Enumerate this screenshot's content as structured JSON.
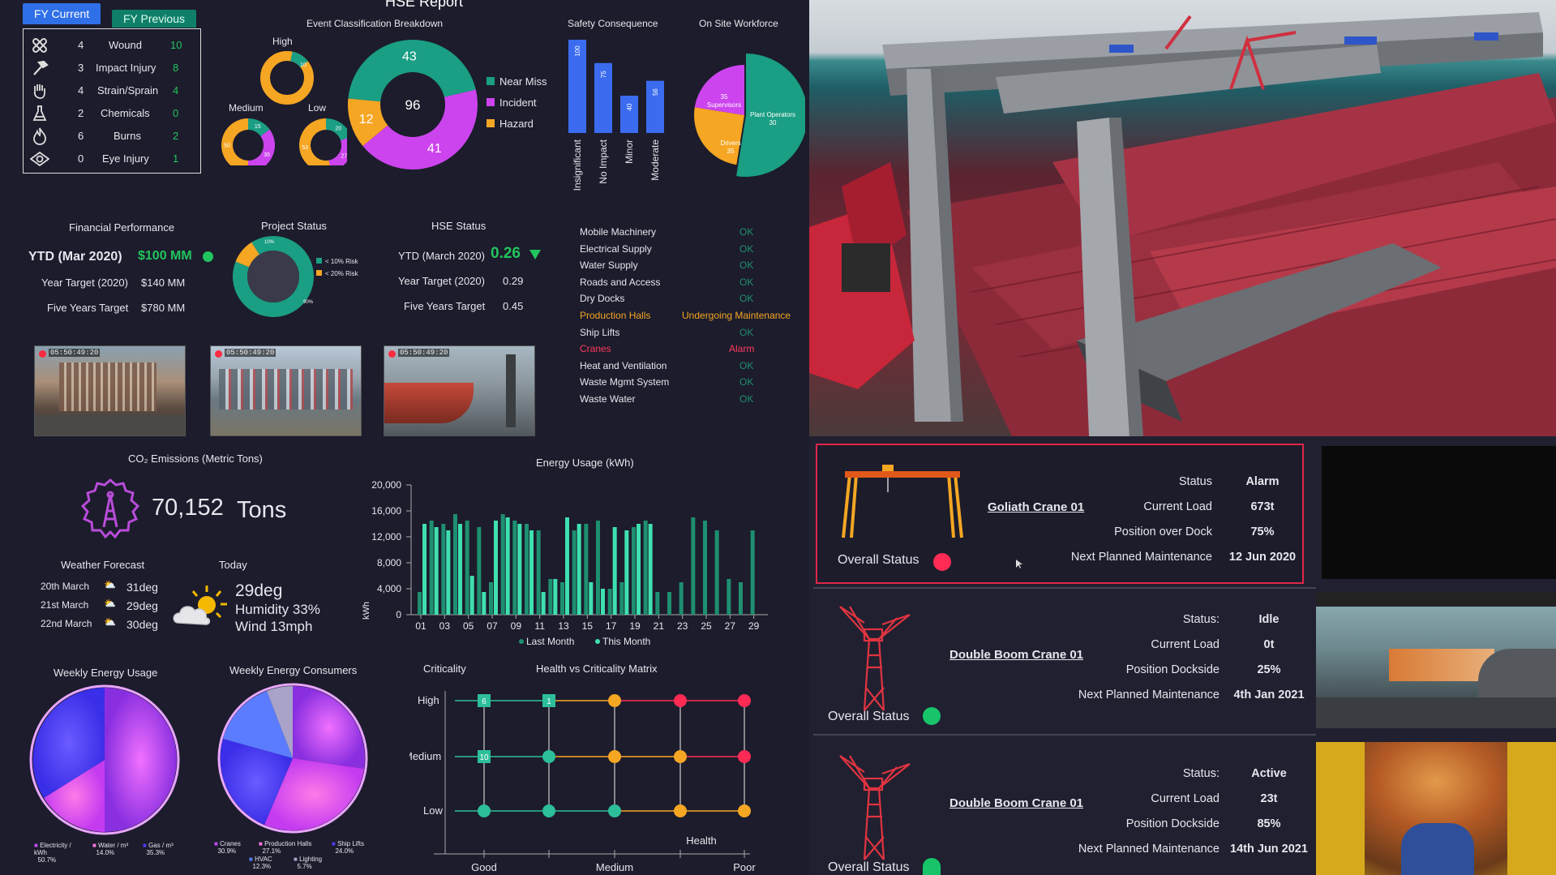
{
  "tabs": {
    "current": "FY Current",
    "previous": "FY Previous"
  },
  "report_title": "HSE Report",
  "injuries": [
    {
      "icon": "bandage-icon",
      "current": "4",
      "label": "Wound",
      "previous": "10"
    },
    {
      "icon": "hammer-icon",
      "current": "3",
      "label": "Impact Injury",
      "previous": "8"
    },
    {
      "icon": "hand-strain-icon",
      "current": "4",
      "label": "Strain/Sprain",
      "previous": "4"
    },
    {
      "icon": "chemical-icon",
      "current": "2",
      "label": "Chemicals",
      "previous": "0"
    },
    {
      "icon": "fire-icon",
      "current": "6",
      "label": "Burns",
      "previous": "2"
    },
    {
      "icon": "eye-icon",
      "current": "0",
      "label": "Eye Injury",
      "previous": "1"
    }
  ],
  "event_classification": {
    "title": "Event Classification Breakdown",
    "total": "96",
    "segments": [
      {
        "name": "Near Miss",
        "value": 43,
        "color": "#1a9e84"
      },
      {
        "name": "Incident",
        "value": 41,
        "color": "#cc44ee"
      },
      {
        "name": "Hazard",
        "value": 12,
        "color": "#f5a623"
      }
    ],
    "severity": [
      {
        "label": "High",
        "values": [
          10,
          0,
          0
        ],
        "shown": [
          "10",
          "",
          ""
        ]
      },
      {
        "label": "Medium",
        "values": [
          15,
          35,
          50
        ],
        "shown": [
          "15",
          "35",
          "50"
        ]
      },
      {
        "label": "Low",
        "values": [
          20,
          27,
          53
        ],
        "shown": [
          "20",
          "27",
          "53"
        ]
      }
    ]
  },
  "safety_consequence": {
    "title": "Safety Consequence",
    "categories": [
      "Insignificant",
      "No Impact",
      "Minor",
      "Moderate"
    ],
    "values": [
      100,
      75,
      40,
      56
    ]
  },
  "workforce": {
    "title": "On Site Workforce",
    "slices": [
      {
        "name": "Plant Operators",
        "value": 30,
        "color": "#1a9e84"
      },
      {
        "name": "Drivers",
        "value": 35,
        "color": "#f5a623"
      },
      {
        "name": "Supervisors",
        "value": 35,
        "color": "#cc44ee"
      }
    ]
  },
  "systems": [
    {
      "name": "Mobile Machinery",
      "status": "OK",
      "state": "ok"
    },
    {
      "name": "Electrical Supply",
      "status": "OK",
      "state": "ok"
    },
    {
      "name": "Water Supply",
      "status": "OK",
      "state": "ok"
    },
    {
      "name": "Roads and Access",
      "status": "OK",
      "state": "ok"
    },
    {
      "name": "Dry Docks",
      "status": "OK",
      "state": "ok"
    },
    {
      "name": "Production Halls",
      "status": "Undergoing Maintenance",
      "state": "warn"
    },
    {
      "name": "Ship Lifts",
      "status": "OK",
      "state": "ok"
    },
    {
      "name": "Cranes",
      "status": "Alarm",
      "state": "alarm"
    },
    {
      "name": "Heat and Ventilation",
      "status": "OK",
      "state": "ok"
    },
    {
      "name": "Waste Mgmt System",
      "status": "OK",
      "state": "ok"
    },
    {
      "name": "Waste Water",
      "status": "OK",
      "state": "ok"
    }
  ],
  "financial": {
    "title": "Financial Performance",
    "ytd_label": "YTD (Mar 2020)",
    "ytd_value": "$100 MM",
    "year_target_label": "Year Target (2020)",
    "year_target_value": "$140 MM",
    "five_year_label": "Five Years Target",
    "five_year_value": "$780 MM"
  },
  "project_status": {
    "title": "Project Status",
    "legend": [
      "< 10% Risk",
      "< 20% Risk"
    ],
    "slices": [
      {
        "name": "< 10% Risk",
        "value": 90,
        "color": "#1a9e84",
        "label": "90%"
      },
      {
        "name": "< 20% Risk",
        "value": 10,
        "color": "#f5a623",
        "label": "10%"
      }
    ]
  },
  "hse_status": {
    "title": "HSE Status",
    "ytd_label": "YTD (March 2020)",
    "ytd_value": "0.26",
    "year_target_label": "Year Target (2020)",
    "year_target_value": "0.29",
    "five_year_label": "Five Years Target",
    "five_year_value": "0.45"
  },
  "cameras": [
    {
      "timestamp": "05:50:49:20"
    },
    {
      "timestamp": "05:50:49:20"
    },
    {
      "timestamp": "05:50:49:20"
    }
  ],
  "co2": {
    "title": "CO₂ Emissions (Metric Tons)",
    "value": "70,152",
    "unit": "Tons"
  },
  "weather": {
    "title": "Weather Forecast",
    "forecast": [
      {
        "date": "20th March",
        "temp": "31deg"
      },
      {
        "date": "21st March",
        "temp": "29deg"
      },
      {
        "date": "22nd March",
        "temp": "30deg"
      }
    ],
    "today_label": "Today",
    "today_temp": "29deg",
    "humidity": "Humidity 33%",
    "wind": "Wind 13mph"
  },
  "chart_data": [
    {
      "type": "bar",
      "title": "Energy Usage (kWh)",
      "ylabel": "kWh",
      "ylim": [
        0,
        20000
      ],
      "yticks": [
        "20,000",
        "16,000",
        "12,000",
        "8,000",
        "4,000",
        "0"
      ],
      "xticks": [
        "01",
        "03",
        "05",
        "07",
        "09",
        "11",
        "13",
        "15",
        "17",
        "19",
        "21",
        "23",
        "25",
        "27",
        "29"
      ],
      "series": [
        {
          "name": "Last Month",
          "color": "#1e8f70",
          "values": [
            3500,
            14500,
            14000,
            15500,
            14500,
            13500,
            5000,
            15500,
            14500,
            14000,
            13000,
            5500,
            5000,
            13000,
            14000,
            14500,
            4000,
            5000,
            13500,
            14500,
            3500,
            3500,
            5000,
            15000,
            14500,
            13000,
            5500,
            5000,
            13000
          ]
        },
        {
          "name": "This Month",
          "color": "#3fe0b0",
          "values": [
            14000,
            13500,
            13000,
            14000,
            6000,
            3500,
            14500,
            15000,
            14000,
            13000,
            3500,
            5500,
            15000,
            14000,
            5000,
            4000,
            13500,
            13000,
            14000,
            14000
          ]
        }
      ]
    }
  ],
  "weekly_energy": {
    "title": "Weekly Energy Usage",
    "legend": [
      {
        "name": "Electricity / kWh",
        "pct": "50.7%"
      },
      {
        "name": "Water / m³",
        "pct": "14.0%"
      },
      {
        "name": "Gas / m³",
        "pct": "35.3%"
      }
    ]
  },
  "weekly_consumers": {
    "title": "Weekly Energy Consumers",
    "legend": [
      {
        "name": "Cranes",
        "pct": "30.9%"
      },
      {
        "name": "Production Halls",
        "pct": "27.1%"
      },
      {
        "name": "Ship Lifts",
        "pct": "24.0%"
      },
      {
        "name": "HVAC",
        "pct": "12.3%"
      },
      {
        "name": "Lighting",
        "pct": "5.7%"
      }
    ]
  },
  "matrix": {
    "title": "Health vs Criticality Matrix",
    "y_title": "Criticality",
    "x_title": "Health",
    "rows": [
      "High",
      "Medium",
      "Low"
    ],
    "cols": [
      "Good",
      "Medium",
      "Poor"
    ],
    "counts": {
      "high_1": "6",
      "high_2": "1",
      "medium_1": "10"
    }
  },
  "cranes": [
    {
      "name": "Goliath Crane 01",
      "overall": "Overall Status",
      "status_label": "Status",
      "status": "Alarm",
      "load_label": "Current Load",
      "load": "673t",
      "position_label": "Position over Dock",
      "position": "75%",
      "maint_label": "Next Planned Maintenance",
      "maint": "12 Jun 2020",
      "indicator": "#ff2b55"
    },
    {
      "name": "Double Boom Crane 01",
      "overall": "Overall Status",
      "status_label": "Status:",
      "status": "Idle",
      "load_label": "Current Load",
      "load": "0t",
      "position_label": "Position Dockside",
      "position": "25%",
      "maint_label": "Next Planned Maintenance",
      "maint": "4th Jan 2021",
      "indicator": "#18c46a"
    },
    {
      "name": "Double Boom Crane 01",
      "overall": "Overall Status",
      "status_label": "Status:",
      "status": "Active",
      "load_label": "Current Load",
      "load": "23t",
      "position_label": "Position Dockside",
      "position": "85%",
      "maint_label": "Next Planned Maintenance",
      "maint": "14th Jun 2021",
      "indicator": "#18c46a"
    }
  ]
}
